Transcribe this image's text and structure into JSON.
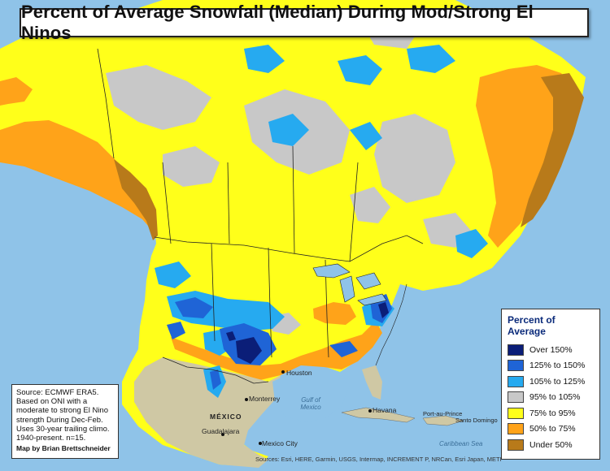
{
  "title": "Percent of Average Snowfall (Median) During Mod/Strong El Ninos",
  "legend": {
    "title": "Percent of Average",
    "items": [
      {
        "label": "Over 150%",
        "color": "#0b1e78"
      },
      {
        "label": "125% to 150%",
        "color": "#1f64d6"
      },
      {
        "label": "105% to 125%",
        "color": "#26aaf0"
      },
      {
        "label": "95% to 105%",
        "color": "#c8c8c8"
      },
      {
        "label": "75% to 95%",
        "color": "#ffff1a"
      },
      {
        "label": "50% to 75%",
        "color": "#ffa319"
      },
      {
        "label": "Under 50%",
        "color": "#b87a1a"
      }
    ]
  },
  "source": {
    "lines": [
      "Source: ECMWF ERA5.",
      "Based on ONI with a",
      "moderate to strong El Nino",
      "strength During Dec-Feb.",
      "Uses 30-year trailing climo.",
      "1940-present. n=15."
    ],
    "credit": "Map by Brian Brettschneider"
  },
  "attribution": "Sources: Esri, HERE, Garmin, USGS, Intermap, INCREMENT P, NRCan, Esri Japan, METI",
  "places": {
    "houston": "Houston",
    "monterrey": "Monterrey",
    "mexico_country": "MÉXICO",
    "guadalajara": "Guadalajara",
    "mexico_city": "Mexico City",
    "gulf": "Gulf of Mexico",
    "havana": "Havana",
    "port_au_prince": "Port-au-Prince",
    "santo_domingo": "Santo Domingo",
    "caribbean": "Caribbean Sea"
  },
  "colors": {
    "ocean": "#8fc3e8",
    "land_mexico": "#cfc8a4"
  }
}
